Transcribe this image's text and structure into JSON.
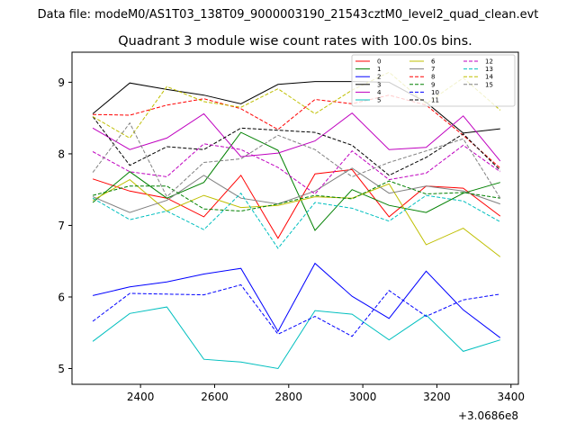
{
  "header": {
    "data_file": "Data file: modeM0/AS1T03_138T09_9000003190_21543cztM0_level2_quad_clean.evt"
  },
  "chart_data": {
    "type": "line",
    "title": "Quadrant 3 module wise count rates with 100.0s bins.",
    "xlabel": "",
    "ylabel": "",
    "x_offset_label": "+3.0686e8",
    "xlim": [
      2215,
      3420
    ],
    "ylim": [
      4.78,
      9.42
    ],
    "x_ticks": [
      2400,
      2600,
      2800,
      3000,
      3200,
      3400
    ],
    "x_tick_labels": [
      "2400",
      "2600",
      "2800",
      "3000",
      "3200",
      "3400"
    ],
    "y_ticks": [
      5,
      6,
      7,
      8,
      9
    ],
    "y_tick_labels": [
      "5",
      "6",
      "7",
      "8",
      "9"
    ],
    "legend_position": "top-right",
    "x": [
      2271,
      2371,
      2471,
      2571,
      2671,
      2771,
      2871,
      2971,
      3071,
      3171,
      3271,
      3371
    ],
    "series": [
      {
        "name": "0",
        "color": "#ff0000",
        "dash": "solid",
        "values": [
          7.65,
          7.48,
          7.38,
          7.12,
          7.7,
          6.82,
          7.72,
          7.78,
          7.12,
          7.55,
          7.52,
          7.13
        ]
      },
      {
        "name": "1",
        "color": "#008000",
        "dash": "solid",
        "values": [
          7.32,
          7.75,
          7.38,
          7.6,
          8.3,
          8.05,
          6.93,
          7.5,
          7.28,
          7.18,
          7.45,
          7.6
        ]
      },
      {
        "name": "2",
        "color": "#0000ff",
        "dash": "solid",
        "values": [
          6.02,
          6.14,
          6.21,
          6.32,
          6.4,
          5.52,
          6.47,
          6.01,
          5.7,
          6.36,
          5.82,
          5.43
        ]
      },
      {
        "name": "3",
        "color": "#000000",
        "dash": "solid",
        "values": [
          8.56,
          8.99,
          8.9,
          8.82,
          8.7,
          8.97,
          9.01,
          9.01,
          9.0,
          8.72,
          8.29,
          8.35
        ]
      },
      {
        "name": "4",
        "color": "#bf00bf",
        "dash": "solid",
        "values": [
          8.36,
          8.06,
          8.22,
          8.56,
          7.96,
          8.01,
          8.18,
          8.57,
          8.06,
          8.09,
          8.53,
          7.9
        ]
      },
      {
        "name": "5",
        "color": "#00bfbf",
        "dash": "solid",
        "values": [
          5.38,
          5.77,
          5.86,
          5.13,
          5.09,
          5.0,
          5.81,
          5.76,
          5.4,
          5.75,
          5.24,
          5.4
        ]
      },
      {
        "name": "6",
        "color": "#bfbf00",
        "dash": "solid",
        "values": [
          7.35,
          7.64,
          7.2,
          7.42,
          7.25,
          7.28,
          7.4,
          7.38,
          7.58,
          6.73,
          6.96,
          6.56
        ]
      },
      {
        "name": "7",
        "color": "#808080",
        "dash": "solid",
        "values": [
          7.4,
          7.18,
          7.35,
          7.7,
          7.38,
          7.3,
          7.48,
          7.8,
          7.45,
          7.55,
          7.48,
          7.3
        ]
      },
      {
        "name": "8",
        "color": "#ff0000",
        "dash": "dashed",
        "values": [
          8.55,
          8.54,
          8.68,
          8.77,
          8.63,
          8.34,
          8.76,
          8.7,
          8.82,
          8.68,
          8.26,
          7.8
        ]
      },
      {
        "name": "9",
        "color": "#008000",
        "dash": "dashed",
        "values": [
          7.42,
          7.55,
          7.55,
          7.23,
          7.2,
          7.3,
          7.42,
          7.37,
          7.62,
          7.44,
          7.46,
          7.38
        ]
      },
      {
        "name": "10",
        "color": "#0000ff",
        "dash": "dashed",
        "values": [
          5.66,
          6.05,
          6.04,
          6.03,
          6.17,
          5.48,
          5.73,
          5.45,
          6.09,
          5.73,
          5.96,
          6.04
        ]
      },
      {
        "name": "11",
        "color": "#000000",
        "dash": "dashed",
        "values": [
          8.52,
          7.84,
          8.1,
          8.06,
          8.36,
          8.33,
          8.3,
          8.12,
          7.7,
          7.95,
          8.28,
          7.77
        ]
      },
      {
        "name": "12",
        "color": "#bf00bf",
        "dash": "dashed",
        "values": [
          8.03,
          7.75,
          7.68,
          8.14,
          8.06,
          7.81,
          7.44,
          8.04,
          7.64,
          7.73,
          8.12,
          7.75
        ]
      },
      {
        "name": "13",
        "color": "#00bfbf",
        "dash": "dashed",
        "values": [
          7.38,
          7.08,
          7.2,
          6.94,
          7.45,
          6.68,
          7.32,
          7.24,
          7.06,
          7.42,
          7.34,
          7.05
        ]
      },
      {
        "name": "14",
        "color": "#bfbf00",
        "dash": "dashed",
        "values": [
          8.52,
          8.22,
          8.94,
          8.73,
          8.65,
          8.91,
          8.56,
          8.89,
          9.14,
          8.7,
          9.06,
          8.61
        ]
      },
      {
        "name": "15",
        "color": "#808080",
        "dash": "dashed",
        "values": [
          7.74,
          8.43,
          7.4,
          7.88,
          7.93,
          8.26,
          8.06,
          7.68,
          7.88,
          8.04,
          8.21,
          7.38
        ]
      }
    ]
  }
}
